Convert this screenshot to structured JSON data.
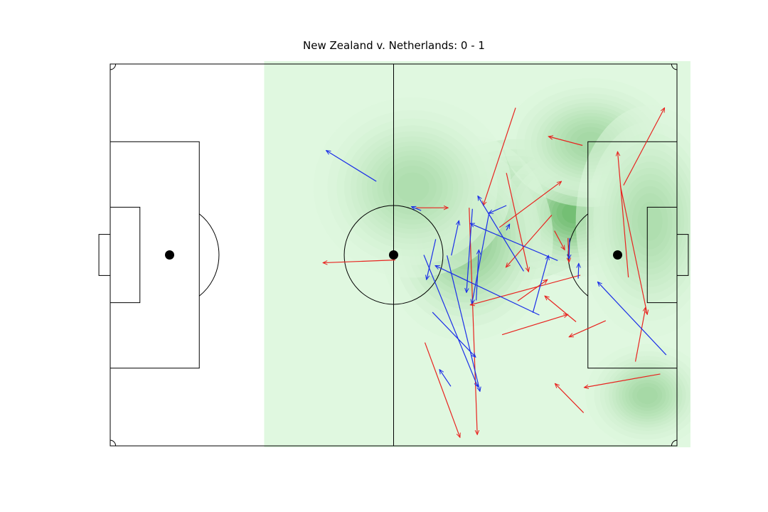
{
  "chart_data": {
    "type": "pass_map",
    "title": "New Zealand v. Netherlands: 0 - 1",
    "pitch": {
      "length": 105,
      "width": 68
    },
    "colors": {
      "heatmap_base": "#e0f8e0",
      "heatmap_peak": "#008000",
      "series_red": "#e8231f",
      "series_blue": "#1a2ee8",
      "lines": "#000000"
    },
    "heatmap": {
      "base_x_range": [
        28.5,
        107.5
      ],
      "blobs": [
        {
          "x": 75.0,
          "y": 26.0,
          "sx": 7.5,
          "sy": 5.5,
          "w": 1.0
        },
        {
          "x": 86.0,
          "y": 26.5,
          "sx": 6.0,
          "sy": 5.0,
          "w": 0.55
        },
        {
          "x": 66.0,
          "y": 31.0,
          "sx": 7.0,
          "sy": 8.0,
          "w": 0.4
        },
        {
          "x": 99.5,
          "y": 59.0,
          "sx": 5.0,
          "sy": 4.0,
          "w": 0.3
        },
        {
          "x": 89.0,
          "y": 14.0,
          "sx": 7.0,
          "sy": 5.0,
          "w": 0.3
        },
        {
          "x": 56.0,
          "y": 22.0,
          "sx": 8.0,
          "sy": 7.0,
          "w": 0.25
        },
        {
          "x": 100.0,
          "y": 28.0,
          "sx": 6.0,
          "sy": 9.0,
          "w": 0.25
        }
      ]
    },
    "series": [
      {
        "color_key": "series_red",
        "passes": [
          {
            "x1": 52.8,
            "y1": 34.9,
            "x2": 39.4,
            "y2": 35.4
          },
          {
            "x1": 58.3,
            "y1": 49.6,
            "x2": 64.8,
            "y2": 66.5
          },
          {
            "x1": 66.5,
            "y1": 25.6,
            "x2": 68.0,
            "y2": 66.0
          },
          {
            "x1": 56.7,
            "y1": 25.6,
            "x2": 62.6,
            "y2": 25.6
          },
          {
            "x1": 75.1,
            "y1": 7.8,
            "x2": 69.1,
            "y2": 25.2
          },
          {
            "x1": 73.4,
            "y1": 19.4,
            "x2": 77.5,
            "y2": 37.0
          },
          {
            "x1": 81.8,
            "y1": 26.9,
            "x2": 73.3,
            "y2": 36.2
          },
          {
            "x1": 82.3,
            "y1": 29.7,
            "x2": 84.2,
            "y2": 33.1
          },
          {
            "x1": 72.1,
            "y1": 29.1,
            "x2": 83.6,
            "y2": 20.9
          },
          {
            "x1": 86.3,
            "y1": 45.9,
            "x2": 80.5,
            "y2": 41.3
          },
          {
            "x1": 87.1,
            "y1": 37.6,
            "x2": 66.7,
            "y2": 42.9
          },
          {
            "x1": 72.6,
            "y1": 48.2,
            "x2": 84.8,
            "y2": 44.6
          },
          {
            "x1": 75.5,
            "y1": 42.2,
            "x2": 81.0,
            "y2": 38.4
          },
          {
            "x1": 91.8,
            "y1": 45.7,
            "x2": 85.0,
            "y2": 48.6
          },
          {
            "x1": 84.8,
            "y1": 31.0,
            "x2": 85.0,
            "y2": 35.3
          },
          {
            "x1": 94.5,
            "y1": 21.6,
            "x2": 99.5,
            "y2": 44.6
          },
          {
            "x1": 96.0,
            "y1": 38.0,
            "x2": 94.0,
            "y2": 15.6
          },
          {
            "x1": 95.1,
            "y1": 21.6,
            "x2": 102.7,
            "y2": 7.8
          },
          {
            "x1": 97.3,
            "y1": 53.0,
            "x2": 99.2,
            "y2": 43.3
          },
          {
            "x1": 101.9,
            "y1": 55.2,
            "x2": 87.8,
            "y2": 57.6
          },
          {
            "x1": 87.5,
            "y1": 14.5,
            "x2": 81.2,
            "y2": 12.9
          },
          {
            "x1": 87.7,
            "y1": 62.1,
            "x2": 82.4,
            "y2": 56.9
          }
        ]
      },
      {
        "color_key": "series_blue",
        "passes": [
          {
            "x1": 49.3,
            "y1": 20.9,
            "x2": 40.0,
            "y2": 15.4
          },
          {
            "x1": 57.6,
            "y1": 26.1,
            "x2": 55.8,
            "y2": 25.4
          },
          {
            "x1": 63.1,
            "y1": 57.4,
            "x2": 61.0,
            "y2": 54.4
          },
          {
            "x1": 62.4,
            "y1": 34.1,
            "x2": 68.5,
            "y2": 58.3
          },
          {
            "x1": 58.1,
            "y1": 34.0,
            "x2": 68.1,
            "y2": 57.5
          },
          {
            "x1": 59.7,
            "y1": 44.2,
            "x2": 67.7,
            "y2": 52.2
          },
          {
            "x1": 70.2,
            "y1": 26.5,
            "x2": 67.0,
            "y2": 42.7
          },
          {
            "x1": 67.8,
            "y1": 42.1,
            "x2": 68.3,
            "y2": 33.1
          },
          {
            "x1": 67.1,
            "y1": 25.8,
            "x2": 66.0,
            "y2": 40.7
          },
          {
            "x1": 76.6,
            "y1": 36.9,
            "x2": 68.1,
            "y2": 23.5
          },
          {
            "x1": 73.4,
            "y1": 29.6,
            "x2": 74.0,
            "y2": 28.5
          },
          {
            "x1": 73.4,
            "y1": 25.2,
            "x2": 70.1,
            "y2": 26.6
          },
          {
            "x1": 79.5,
            "y1": 44.7,
            "x2": 60.2,
            "y2": 35.9
          },
          {
            "x1": 78.3,
            "y1": 44.3,
            "x2": 81.2,
            "y2": 34.1
          },
          {
            "x1": 82.9,
            "y1": 35.0,
            "x2": 66.7,
            "y2": 28.4
          },
          {
            "x1": 103.0,
            "y1": 51.8,
            "x2": 90.3,
            "y2": 38.8
          },
          {
            "x1": 86.7,
            "y1": 38.2,
            "x2": 86.8,
            "y2": 35.5
          },
          {
            "x1": 60.3,
            "y1": 31.2,
            "x2": 58.6,
            "y2": 38.4
          },
          {
            "x1": 63.2,
            "y1": 34.1,
            "x2": 64.6,
            "y2": 27.9
          },
          {
            "x1": 85.1,
            "y1": 31.0,
            "x2": 85.0,
            "y2": 34.7
          }
        ]
      }
    ]
  }
}
